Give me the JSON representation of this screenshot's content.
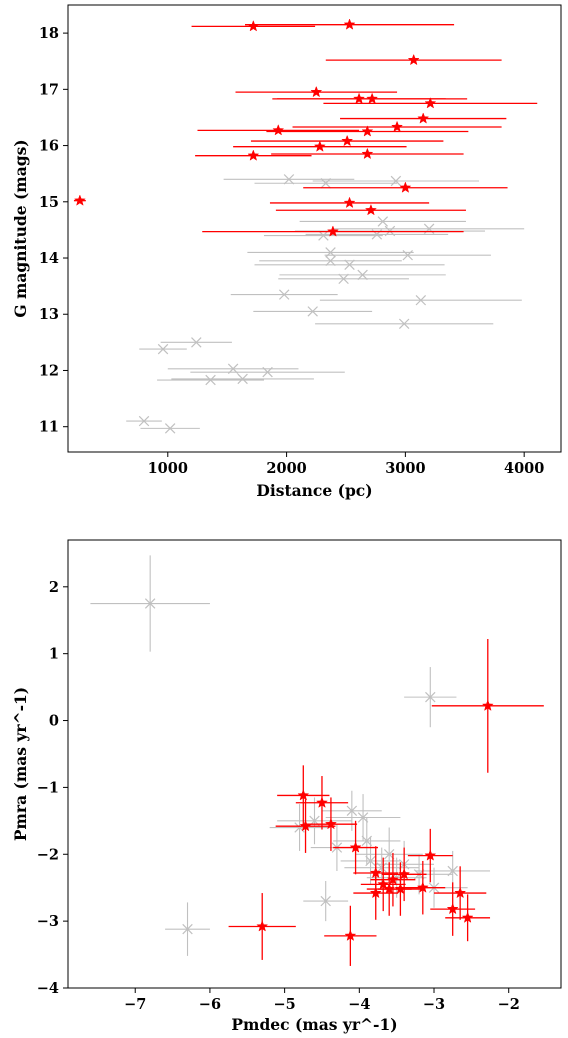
{
  "chart_data": [
    {
      "type": "scatter",
      "xlabel": "Distance (pc)",
      "ylabel": "G magnitude (mags)",
      "xlim": [
        160,
        4310
      ],
      "ylim": [
        10.55,
        18.5
      ],
      "xticks": [
        1000,
        2000,
        3000,
        4000
      ],
      "yticks": [
        11,
        12,
        13,
        14,
        15,
        16,
        17,
        18
      ],
      "grid": false,
      "legend": "none",
      "colors": {
        "highlight": "#ff0000",
        "background": "#c0c0c0"
      },
      "series": [
        {
          "marker": "x",
          "color": "#c0c0c0",
          "points": [
            {
              "x": 800,
              "y": 11.1,
              "xerr": 150
            },
            {
              "x": 1020,
              "y": 10.97,
              "xerr": 250
            },
            {
              "x": 960,
              "y": 12.38,
              "xerr": 200
            },
            {
              "x": 1240,
              "y": 12.5,
              "xerr": 300
            },
            {
              "x": 1360,
              "y": 11.83,
              "xerr": 450
            },
            {
              "x": 1550,
              "y": 12.03,
              "xerr": 550
            },
            {
              "x": 1630,
              "y": 11.85,
              "xerr": 600
            },
            {
              "x": 1840,
              "y": 11.97,
              "xerr": 650
            },
            {
              "x": 1980,
              "y": 13.35,
              "xerr": 450
            },
            {
              "x": 2020,
              "y": 15.4,
              "xerr": 550
            },
            {
              "x": 2220,
              "y": 13.05,
              "xerr": 500
            },
            {
              "x": 2310,
              "y": 14.4,
              "xerr": 500
            },
            {
              "x": 2330,
              "y": 15.33,
              "xerr": 600
            },
            {
              "x": 2370,
              "y": 13.95,
              "xerr": 600
            },
            {
              "x": 2370,
              "y": 14.1,
              "xerr": 700
            },
            {
              "x": 2480,
              "y": 13.63,
              "xerr": 550
            },
            {
              "x": 2530,
              "y": 13.88,
              "xerr": 800
            },
            {
              "x": 2640,
              "y": 13.7,
              "xerr": 700
            },
            {
              "x": 2760,
              "y": 14.42,
              "xerr": 600
            },
            {
              "x": 2810,
              "y": 14.65,
              "xerr": 700
            },
            {
              "x": 2870,
              "y": 14.48,
              "xerr": 800
            },
            {
              "x": 2920,
              "y": 15.37,
              "xerr": 700
            },
            {
              "x": 2990,
              "y": 12.83,
              "xerr": 750
            },
            {
              "x": 3020,
              "y": 14.05,
              "xerr": 700
            },
            {
              "x": 3130,
              "y": 13.25,
              "xerr": 850
            },
            {
              "x": 3200,
              "y": 14.52,
              "xerr": 800
            }
          ]
        },
        {
          "marker": "star",
          "color": "#ff0000",
          "points": [
            {
              "x": 260,
              "y": 15.02,
              "xerr": 50
            },
            {
              "x": 1720,
              "y": 18.12,
              "xerr": 520
            },
            {
              "x": 2530,
              "y": 18.15,
              "xerr": 880
            },
            {
              "x": 3070,
              "y": 17.52,
              "xerr": 740
            },
            {
              "x": 2250,
              "y": 16.95,
              "xerr": 680
            },
            {
              "x": 2610,
              "y": 16.83,
              "xerr": 730
            },
            {
              "x": 2720,
              "y": 16.83,
              "xerr": 800
            },
            {
              "x": 3210,
              "y": 16.75,
              "xerr": 900
            },
            {
              "x": 3150,
              "y": 16.48,
              "xerr": 700
            },
            {
              "x": 1930,
              "y": 16.27,
              "xerr": 680
            },
            {
              "x": 2680,
              "y": 16.25,
              "xerr": 850
            },
            {
              "x": 2930,
              "y": 16.33,
              "xerr": 880
            },
            {
              "x": 2510,
              "y": 16.08,
              "xerr": 810
            },
            {
              "x": 2280,
              "y": 15.98,
              "xerr": 730
            },
            {
              "x": 1720,
              "y": 15.82,
              "xerr": 490
            },
            {
              "x": 2680,
              "y": 15.85,
              "xerr": 810
            },
            {
              "x": 3000,
              "y": 15.25,
              "xerr": 860
            },
            {
              "x": 2530,
              "y": 14.98,
              "xerr": 670
            },
            {
              "x": 2710,
              "y": 14.85,
              "xerr": 800
            },
            {
              "x": 2390,
              "y": 14.47,
              "xerr": 1100
            }
          ]
        }
      ]
    },
    {
      "type": "scatter",
      "xlabel": "Pmdec (mas yr^-1)",
      "ylabel": "Pmra (mas yr^-1)",
      "xlim": [
        -7.9,
        -1.3
      ],
      "ylim": [
        -4,
        2.7
      ],
      "xticks": [
        -7,
        -6,
        -5,
        -4,
        -3,
        -2
      ],
      "yticks": [
        -4,
        -3,
        -2,
        -1,
        0,
        1,
        2
      ],
      "grid": false,
      "legend": "none",
      "colors": {
        "highlight": "#ff0000",
        "background": "#c0c0c0"
      },
      "series": [
        {
          "marker": "x",
          "color": "#c0c0c0",
          "points": [
            {
              "x": -6.8,
              "y": 1.75,
              "xerr": 0.8,
              "yerr": 0.72
            },
            {
              "x": -6.3,
              "y": -3.12,
              "xerr": 0.3,
              "yerr": 0.4
            },
            {
              "x": -3.05,
              "y": 0.35,
              "xerr": 0.35,
              "yerr": 0.45
            },
            {
              "x": -4.6,
              "y": -1.5,
              "xerr": 0.5,
              "yerr": 0.35
            },
            {
              "x": -4.45,
              "y": -2.7,
              "xerr": 0.3,
              "yerr": 0.3
            },
            {
              "x": -4.1,
              "y": -1.35,
              "xerr": 0.4,
              "yerr": 0.3
            },
            {
              "x": -3.95,
              "y": -1.45,
              "xerr": 0.5,
              "yerr": 0.35
            },
            {
              "x": -3.9,
              "y": -1.8,
              "xerr": 0.45,
              "yerr": 0.35
            },
            {
              "x": -3.85,
              "y": -2.1,
              "xerr": 0.4,
              "yerr": 0.35
            },
            {
              "x": -3.7,
              "y": -2.2,
              "xerr": 0.5,
              "yerr": 0.3
            },
            {
              "x": -3.6,
              "y": -2.0,
              "xerr": 0.45,
              "yerr": 0.4
            },
            {
              "x": -3.5,
              "y": -2.35,
              "xerr": 0.4,
              "yerr": 0.3
            },
            {
              "x": -3.4,
              "y": -2.15,
              "xerr": 0.4,
              "yerr": 0.35
            },
            {
              "x": -3.2,
              "y": -2.3,
              "xerr": 0.45,
              "yerr": 0.3
            },
            {
              "x": -3.0,
              "y": -2.5,
              "xerr": 0.45,
              "yerr": 0.3
            },
            {
              "x": -2.75,
              "y": -2.25,
              "xerr": 0.5,
              "yerr": 0.3
            },
            {
              "x": -4.8,
              "y": -1.6,
              "xerr": 0.4,
              "yerr": 0.35
            },
            {
              "x": -4.3,
              "y": -1.9,
              "xerr": 0.35,
              "yerr": 0.35
            }
          ]
        },
        {
          "marker": "star",
          "color": "#ff0000",
          "points": [
            {
              "x": -2.28,
              "y": 0.22,
              "xerr": 0.75,
              "yerr": 1.0
            },
            {
              "x": -4.75,
              "y": -1.12,
              "xerr": 0.35,
              "yerr": 0.45
            },
            {
              "x": -4.72,
              "y": -1.58,
              "xerr": 0.4,
              "yerr": 0.4
            },
            {
              "x": -4.5,
              "y": -1.23,
              "xerr": 0.35,
              "yerr": 0.4
            },
            {
              "x": -4.38,
              "y": -1.55,
              "xerr": 0.35,
              "yerr": 0.4
            },
            {
              "x": -4.05,
              "y": -1.9,
              "xerr": 0.3,
              "yerr": 0.4
            },
            {
              "x": -3.78,
              "y": -2.28,
              "xerr": 0.3,
              "yerr": 0.4
            },
            {
              "x": -3.78,
              "y": -2.58,
              "xerr": 0.3,
              "yerr": 0.4
            },
            {
              "x": -3.68,
              "y": -2.45,
              "xerr": 0.3,
              "yerr": 0.4
            },
            {
              "x": -3.6,
              "y": -2.52,
              "xerr": 0.3,
              "yerr": 0.4
            },
            {
              "x": -3.55,
              "y": -2.38,
              "xerr": 0.3,
              "yerr": 0.4
            },
            {
              "x": -3.45,
              "y": -2.52,
              "xerr": 0.3,
              "yerr": 0.4
            },
            {
              "x": -3.4,
              "y": -2.3,
              "xerr": 0.3,
              "yerr": 0.4
            },
            {
              "x": -3.15,
              "y": -2.5,
              "xerr": 0.3,
              "yerr": 0.4
            },
            {
              "x": -3.05,
              "y": -2.02,
              "xerr": 0.3,
              "yerr": 0.4
            },
            {
              "x": -2.75,
              "y": -2.82,
              "xerr": 0.3,
              "yerr": 0.4
            },
            {
              "x": -2.65,
              "y": -2.58,
              "xerr": 0.35,
              "yerr": 0.4
            },
            {
              "x": -2.55,
              "y": -2.95,
              "xerr": 0.3,
              "yerr": 0.35
            },
            {
              "x": -4.12,
              "y": -3.22,
              "xerr": 0.35,
              "yerr": 0.45
            },
            {
              "x": -5.3,
              "y": -3.08,
              "xerr": 0.45,
              "yerr": 0.5
            }
          ]
        }
      ]
    }
  ]
}
